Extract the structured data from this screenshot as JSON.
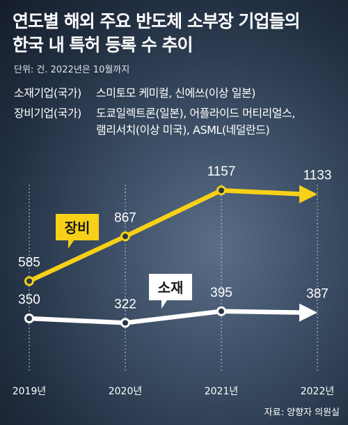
{
  "header": {
    "title": "연도별 해외 주요 반도체 소부장 기업들의\n한국 내 특허 등록 수 추이",
    "unit": "단위: 건. 2022년은 10월까지"
  },
  "legend": {
    "materials_label": "소재기업(국가)",
    "materials_companies": "스미토모 케미컬, 신에쓰(이상 일본)",
    "equipment_label": "장비기업(국가)",
    "equipment_companies_line1": "도쿄일렉트론(일본), 어플라이드 머티리얼스,",
    "equipment_companies_line2": "램리서치(이상 미국), ASML(네덜란드)"
  },
  "chart_data": {
    "type": "line",
    "categories": [
      "2019년",
      "2020년",
      "2021년",
      "2022년"
    ],
    "series": [
      {
        "name": "장비",
        "values": [
          585,
          867,
          1157,
          1133
        ],
        "color": "#f7d117"
      },
      {
        "name": "소재",
        "values": [
          350,
          322,
          395,
          387
        ],
        "color": "#ffffff"
      }
    ],
    "grid": "vertical dotted",
    "legend": "callout labels on lines"
  },
  "source": "자료: 양향자 의원실"
}
